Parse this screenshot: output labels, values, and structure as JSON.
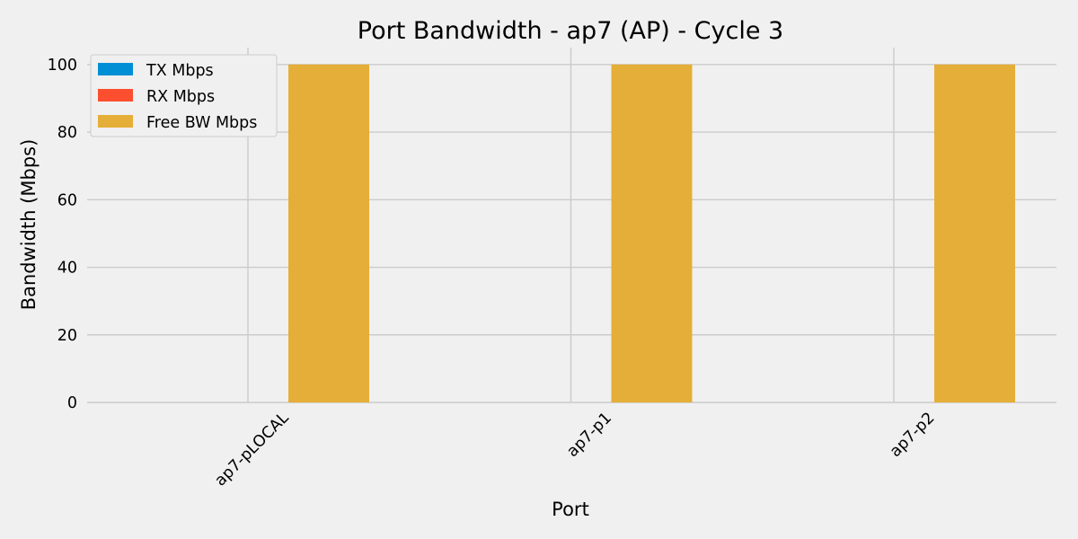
{
  "chart_data": {
    "type": "bar",
    "title": "Port Bandwidth - ap7 (AP) - Cycle 3",
    "xlabel": "Port",
    "ylabel": "Bandwidth (Mbps)",
    "categories": [
      "ap7-pLOCAL",
      "ap7-p1",
      "ap7-p2"
    ],
    "series": [
      {
        "name": "TX Mbps",
        "color": "#008fd5",
        "values": [
          0,
          0,
          0
        ]
      },
      {
        "name": "RX Mbps",
        "color": "#fc4f30",
        "values": [
          0,
          0,
          0
        ]
      },
      {
        "name": "Free BW Mbps",
        "color": "#e5ae38",
        "values": [
          100,
          100,
          100
        ]
      }
    ],
    "ylim": [
      0,
      105
    ],
    "yticks": [
      0,
      20,
      40,
      60,
      80,
      100
    ],
    "grid": true,
    "legend_position": "top-left"
  }
}
